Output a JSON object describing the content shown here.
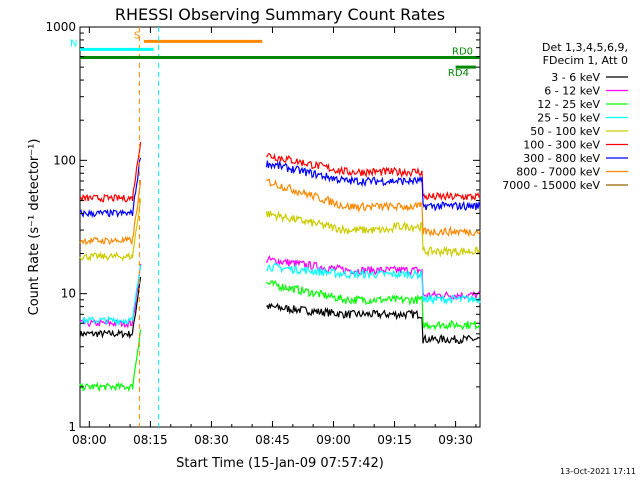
{
  "chart_data": {
    "type": "line",
    "title": "RHESSI Observing Summary Count Rates",
    "xlabel": "Start Time (15-Jan-09 07:57:42)",
    "ylabel": "Count Rate (s⁻¹ detector⁻¹)",
    "ylim": [
      1,
      1000
    ],
    "yscale": "log",
    "xlim_minutes": [
      -2.3,
      96
    ],
    "x_ticks": [
      {
        "m": 0,
        "label": "08:00"
      },
      {
        "m": 15,
        "label": "08:15"
      },
      {
        "m": 30,
        "label": "08:30"
      },
      {
        "m": 45,
        "label": "08:45"
      },
      {
        "m": 60,
        "label": "09:00"
      },
      {
        "m": 75,
        "label": "09:15"
      },
      {
        "m": 90,
        "label": "09:30"
      }
    ],
    "y_ticks": [
      {
        "v": 1,
        "label": "1"
      },
      {
        "v": 10,
        "label": "10"
      },
      {
        "v": 100,
        "label": "100"
      },
      {
        "v": 1000,
        "label": "1000"
      }
    ],
    "legend": {
      "placement": "right",
      "header": [
        "Det 1,3,4,5,6,9,",
        "FDecim 1, Att 0"
      ]
    },
    "segments": [
      [
        -2.3,
        12.8
      ],
      [
        43.5,
        96
      ]
    ],
    "series": [
      {
        "name": "3 - 6 keV",
        "color": "#000000",
        "pre": [
          5,
          5
        ],
        "post": [
          8,
          7,
          7
        ]
      },
      {
        "name": "6 - 12 keV",
        "color": "#ff00ff",
        "pre": [
          6,
          6
        ],
        "post": [
          18,
          15,
          15
        ]
      },
      {
        "name": "12 - 25 keV",
        "color": "#00ff00",
        "pre": [
          2,
          2
        ],
        "post": [
          12,
          9,
          9
        ]
      },
      {
        "name": "25 - 50 keV",
        "color": "#00ffff",
        "pre": [
          6.3,
          6.3
        ],
        "post": [
          16,
          14,
          14
        ]
      },
      {
        "name": "50 - 100 keV",
        "color": "#cccc00",
        "pre": [
          19,
          19
        ],
        "post": [
          40,
          30,
          32
        ]
      },
      {
        "name": "100 - 300 keV",
        "color": "#ff0000",
        "pre": [
          52,
          52
        ],
        "post": [
          110,
          82,
          82
        ]
      },
      {
        "name": "300 - 800 keV",
        "color": "#0000ff",
        "pre": [
          40,
          40
        ],
        "post": [
          95,
          70,
          70
        ]
      },
      {
        "name": "800 - 7000 keV",
        "color": "#ff8800",
        "pre": [
          25,
          25
        ],
        "post": [
          70,
          45,
          45
        ]
      },
      {
        "name": "7000 - 15000 keV",
        "color": "#996600",
        "pre": [],
        "post": []
      }
    ],
    "annotations": [
      {
        "label": "S",
        "color": "#ff8800",
        "level": 780,
        "from": 13.4,
        "to": 42.5,
        "at": 12.3
      },
      {
        "label": "N",
        "color": "#00ffff",
        "level": 680,
        "from": -2.3,
        "to": 15.8,
        "at": 17.0
      },
      {
        "label": "RD0",
        "color": "#008800",
        "level": 590,
        "from": -2.3,
        "to": 96
      },
      {
        "label": "RD4",
        "color": "#008800",
        "level": 500,
        "from": 90,
        "to": 95
      }
    ],
    "timestamp": "13-Oct-2021 17:11"
  }
}
